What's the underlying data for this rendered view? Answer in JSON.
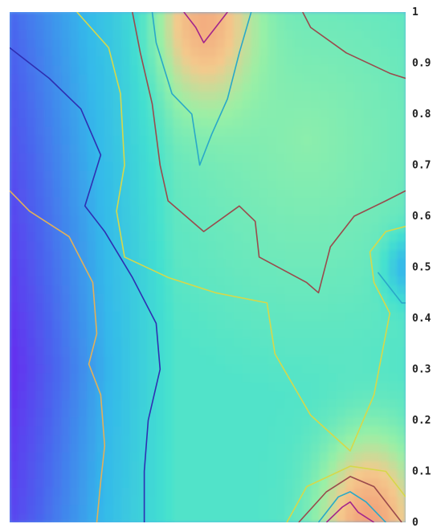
{
  "chart_data": {
    "type": "heatmap",
    "title": "",
    "xlabel": "",
    "ylabel": "",
    "x_range": [
      0,
      1
    ],
    "ylim": [
      0,
      1
    ],
    "y_ticks": [
      "0",
      "0.1",
      "0.2",
      "0.3",
      "0.4",
      "0.5",
      "0.6",
      "0.7",
      "0.8",
      "0.9",
      "1"
    ],
    "y_tick_values": [
      0,
      0.1,
      0.2,
      0.3,
      0.4,
      0.5,
      0.6,
      0.7,
      0.8,
      0.9,
      1
    ],
    "y_axis_position": "right",
    "colormap": [
      "#6e1cf0",
      "#4b63ee",
      "#34b9ea",
      "#44e1cf",
      "#98f0a6",
      "#f4c98c",
      "#f2a07a",
      "#e9836a"
    ],
    "peaks": [
      {
        "x": 0.49,
        "y": 0.99,
        "level": 0.78
      },
      {
        "x": 0.91,
        "y": 0.0,
        "level": 0.85
      }
    ],
    "troughs": [
      {
        "x": 0.0,
        "y": 0.28,
        "level": 0.0
      },
      {
        "x": 1.0,
        "y": 0.5,
        "level": 0.25
      }
    ],
    "contours": [
      {
        "color": "#e1b05a",
        "points": [
          [
            0.0,
            0.65
          ],
          [
            0.05,
            0.61
          ],
          [
            0.15,
            0.56
          ],
          [
            0.21,
            0.47
          ],
          [
            0.22,
            0.37
          ],
          [
            0.2,
            0.31
          ],
          [
            0.23,
            0.25
          ],
          [
            0.24,
            0.15
          ],
          [
            0.23,
            0.08
          ],
          [
            0.22,
            0.0
          ]
        ]
      },
      {
        "color": "#2e2fb2",
        "points": [
          [
            0.0,
            0.93
          ],
          [
            0.1,
            0.87
          ],
          [
            0.18,
            0.81
          ],
          [
            0.23,
            0.72
          ],
          [
            0.19,
            0.62
          ],
          [
            0.24,
            0.57
          ],
          [
            0.31,
            0.48
          ],
          [
            0.37,
            0.39
          ],
          [
            0.38,
            0.3
          ],
          [
            0.35,
            0.2
          ],
          [
            0.34,
            0.1
          ],
          [
            0.34,
            0.0
          ]
        ]
      },
      {
        "color": "#d6d84a",
        "points": [
          [
            0.17,
            1.0
          ],
          [
            0.25,
            0.93
          ],
          [
            0.28,
            0.84
          ],
          [
            0.29,
            0.7
          ],
          [
            0.27,
            0.61
          ],
          [
            0.29,
            0.52
          ],
          [
            0.4,
            0.48
          ],
          [
            0.52,
            0.45
          ],
          [
            0.65,
            0.43
          ],
          [
            0.67,
            0.33
          ],
          [
            0.76,
            0.21
          ],
          [
            0.86,
            0.14
          ],
          [
            0.92,
            0.25
          ],
          [
            0.96,
            0.41
          ],
          [
            0.92,
            0.47
          ],
          [
            0.91,
            0.53
          ],
          [
            0.95,
            0.57
          ],
          [
            1.0,
            0.58
          ]
        ]
      },
      {
        "color": "#9a4a4c",
        "points": [
          [
            0.31,
            1.0
          ],
          [
            0.33,
            0.92
          ],
          [
            0.36,
            0.82
          ],
          [
            0.38,
            0.7
          ],
          [
            0.4,
            0.63
          ],
          [
            0.49,
            0.57
          ],
          [
            0.58,
            0.62
          ],
          [
            0.62,
            0.59
          ],
          [
            0.63,
            0.52
          ],
          [
            0.75,
            0.47
          ],
          [
            0.78,
            0.45
          ],
          [
            0.81,
            0.54
          ],
          [
            0.87,
            0.6
          ],
          [
            0.95,
            0.63
          ],
          [
            1.0,
            0.65
          ]
        ]
      },
      {
        "color": "#9a4a4c",
        "points": [
          [
            0.74,
            1.0
          ],
          [
            0.76,
            0.97
          ],
          [
            0.85,
            0.92
          ],
          [
            0.96,
            0.88
          ],
          [
            1.0,
            0.87
          ]
        ]
      },
      {
        "color": "#2aa8c8",
        "points": [
          [
            0.36,
            1.0
          ],
          [
            0.37,
            0.94
          ],
          [
            0.41,
            0.84
          ],
          [
            0.46,
            0.8
          ],
          [
            0.48,
            0.7
          ],
          [
            0.51,
            0.76
          ],
          [
            0.55,
            0.83
          ],
          [
            0.58,
            0.92
          ],
          [
            0.61,
            1.0
          ]
        ]
      },
      {
        "color": "#a3258c",
        "points": [
          [
            0.44,
            1.0
          ],
          [
            0.47,
            0.97
          ],
          [
            0.49,
            0.94
          ],
          [
            0.52,
            0.97
          ],
          [
            0.55,
            1.0
          ]
        ]
      },
      {
        "color": "#2aa8c8",
        "points": [
          [
            0.93,
            0.49
          ],
          [
            0.96,
            0.46
          ],
          [
            0.99,
            0.43
          ],
          [
            1.0,
            0.43
          ]
        ]
      },
      {
        "color": "#d6d84a",
        "points": [
          [
            0.7,
            0.0
          ],
          [
            0.75,
            0.07
          ],
          [
            0.86,
            0.11
          ],
          [
            0.95,
            0.1
          ],
          [
            0.99,
            0.06
          ],
          [
            1.0,
            0.05
          ]
        ]
      },
      {
        "color": "#9a4a4c",
        "points": [
          [
            0.73,
            0.0
          ],
          [
            0.8,
            0.06
          ],
          [
            0.86,
            0.09
          ],
          [
            0.92,
            0.07
          ],
          [
            0.97,
            0.02
          ],
          [
            0.99,
            0.0
          ]
        ]
      },
      {
        "color": "#2aa8c8",
        "points": [
          [
            0.78,
            0.0
          ],
          [
            0.83,
            0.05
          ],
          [
            0.86,
            0.06
          ],
          [
            0.9,
            0.04
          ],
          [
            0.95,
            0.0
          ]
        ]
      },
      {
        "color": "#a3258c",
        "points": [
          [
            0.8,
            0.0
          ],
          [
            0.84,
            0.03
          ],
          [
            0.86,
            0.04
          ],
          [
            0.88,
            0.02
          ],
          [
            0.92,
            0.0
          ]
        ]
      }
    ]
  }
}
